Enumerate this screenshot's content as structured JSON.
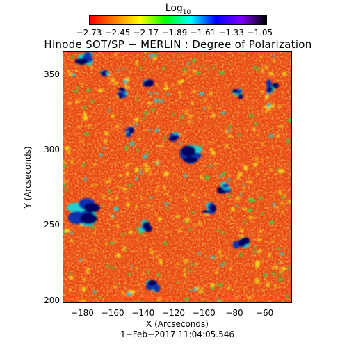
{
  "colorbar": {
    "title": "Log",
    "title_sub": "10",
    "ticks": [
      "−2.73",
      "−2.45",
      "−2.17",
      "−1.89",
      "−1.61",
      "−1.33",
      "−1.05"
    ],
    "colors": [
      "#ff0000",
      "#ff8000",
      "#ffff00",
      "#00ff00",
      "#00ffff",
      "#0000ff",
      "#8000ff",
      "#000000"
    ]
  },
  "title": "Hinode SOT/SP − MERLIN : Degree of Polarization",
  "x_axis": {
    "label": "X (Arcseconds)",
    "ticks": [
      "−180",
      "−160",
      "−140",
      "−120",
      "−100",
      "−80",
      "−60"
    ],
    "range": [
      -193,
      -42
    ]
  },
  "y_axis": {
    "label": "Y (Arcseconds)",
    "ticks": [
      "200",
      "250",
      "300",
      "350"
    ],
    "range": [
      198,
      365
    ]
  },
  "timestamp": "1−Feb−2017 11:04:05.546",
  "map_colors": {
    "background": "#e0401a",
    "mid": "#f07a20",
    "yellow": "#f0e020",
    "green": "#30d040",
    "cyan": "#20d0d0",
    "blue": "#1030b0",
    "dark": "#000060"
  }
}
